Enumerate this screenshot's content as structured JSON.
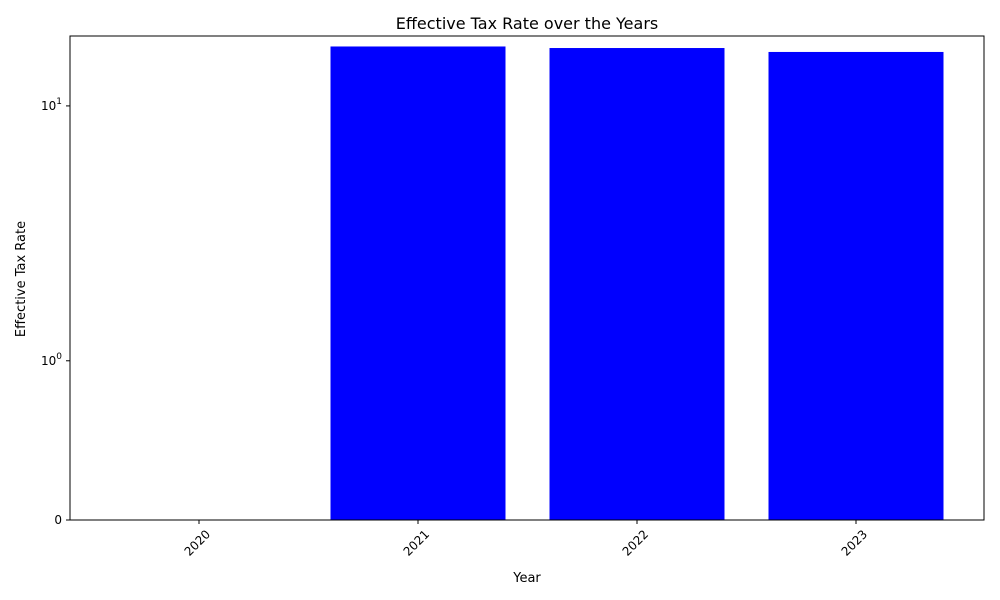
{
  "chart_data": {
    "type": "bar",
    "title": "Effective Tax Rate over the Years",
    "xlabel": "Year",
    "ylabel": "Effective Tax Rate",
    "categories": [
      "2020",
      "2021",
      "2022",
      "2023"
    ],
    "values": [
      0,
      16.2,
      16.0,
      15.5
    ],
    "bar_color": "#0000ff",
    "yscale": "symlog",
    "ylim": [
      0,
      17
    ],
    "yticks": [
      {
        "value": 0,
        "base": "0",
        "exp": ""
      },
      {
        "value": 1,
        "base": "10",
        "exp": "0"
      },
      {
        "value": 10,
        "base": "10",
        "exp": "1"
      }
    ],
    "grid": false,
    "legend": "none"
  }
}
